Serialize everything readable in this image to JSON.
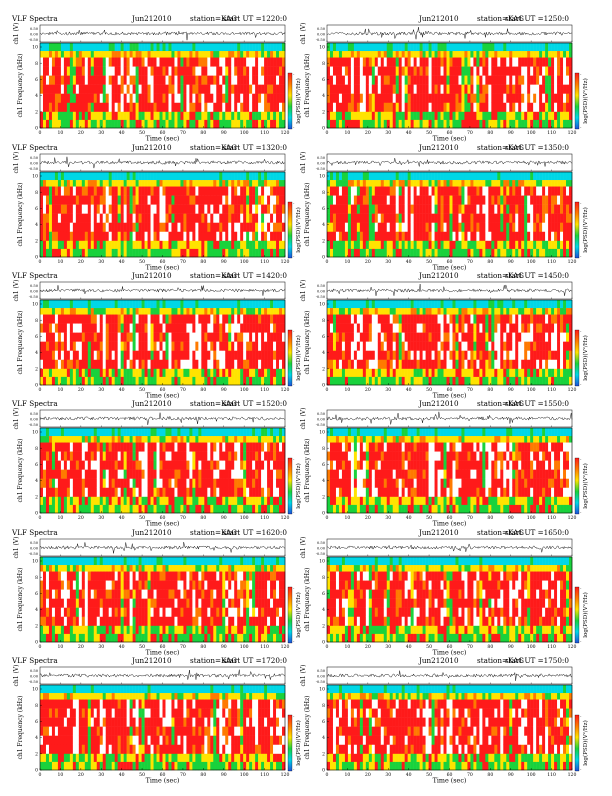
{
  "figure": {
    "panel_title_prefix": "VLF Spectra",
    "x_label": "Time (sec)",
    "y_label_wave": "ch1 (V)",
    "y_label_spec": "ch1 Frequency (kHz)",
    "colorbar_label": "log(PSD)(V²/Hz)",
    "wave_ticks": [
      "0.50",
      "0.00",
      "-0.50"
    ],
    "freq_ticks": [
      "10",
      "8",
      "6",
      "4",
      "2",
      "0"
    ],
    "time_ticks": [
      "0",
      "10",
      "20",
      "30",
      "40",
      "50",
      "60",
      "70",
      "80",
      "90",
      "100",
      "110",
      "120"
    ],
    "colorbar_ticks": [
      "-",
      "-"
    ],
    "colors": {
      "low": "#1f4fd8",
      "cyan": "#00d7e6",
      "green": "#19d23c",
      "yellow": "#ffe300",
      "orange": "#ff7a00",
      "red": "#ff1a1a",
      "white_gap": "#ffffff"
    }
  },
  "chart_data": [
    {
      "type": "heatmap",
      "date": "Jun212010",
      "station": "station=KAG",
      "start": "start UT =1220:0",
      "title": "VLF Spectra",
      "xlabel": "Time (sec)",
      "ylabel": "Frequency (kHz)",
      "xlim": [
        0,
        120
      ],
      "ylim": [
        0,
        10
      ],
      "zlabel": "log(PSD)(V²/Hz)"
    },
    {
      "type": "heatmap",
      "date": "Jun212010",
      "station": "station=KAG",
      "start": "start UT =1250:0",
      "title": "",
      "xlabel": "Time (sec)",
      "ylabel": "Frequency (kHz)",
      "xlim": [
        0,
        120
      ],
      "ylim": [
        0,
        10
      ],
      "zlabel": "log(PSD)(V²/Hz)"
    },
    {
      "type": "heatmap",
      "date": "Jun212010",
      "station": "station=KAG",
      "start": "start UT =1320:0",
      "title": "VLF Spectra",
      "xlabel": "Time (sec)",
      "ylabel": "Frequency (kHz)",
      "xlim": [
        0,
        120
      ],
      "ylim": [
        0,
        10
      ],
      "zlabel": "log(PSD)(V²/Hz)"
    },
    {
      "type": "heatmap",
      "date": "Jun212010",
      "station": "station=KAG",
      "start": "start UT =1350:0",
      "title": "",
      "xlabel": "Time (sec)",
      "ylabel": "Frequency (kHz)",
      "xlim": [
        0,
        120
      ],
      "ylim": [
        0,
        10
      ],
      "zlabel": "log(PSD)(V²/Hz)"
    },
    {
      "type": "heatmap",
      "date": "Jun212010",
      "station": "station=KAG",
      "start": "start UT =1420:0",
      "title": "VLF Spectra",
      "xlabel": "Time (sec)",
      "ylabel": "Frequency (kHz)",
      "xlim": [
        0,
        120
      ],
      "ylim": [
        0,
        10
      ],
      "zlabel": "log(PSD)(V²/Hz)"
    },
    {
      "type": "heatmap",
      "date": "Jun212010",
      "station": "station=KAG",
      "start": "start UT =1450:0",
      "title": "",
      "xlabel": "Time (sec)",
      "ylabel": "Frequency (kHz)",
      "xlim": [
        0,
        120
      ],
      "ylim": [
        0,
        10
      ],
      "zlabel": "log(PSD)(V²/Hz)"
    },
    {
      "type": "heatmap",
      "date": "Jun212010",
      "station": "station=KAG",
      "start": "start UT =1520:0",
      "title": "VLF Spectra",
      "xlabel": "Time (sec)",
      "ylabel": "Frequency (kHz)",
      "xlim": [
        0,
        120
      ],
      "ylim": [
        0,
        10
      ],
      "zlabel": "log(PSD)(V²/Hz)"
    },
    {
      "type": "heatmap",
      "date": "Jun212010",
      "station": "station=KAG",
      "start": "start UT =1550:0",
      "title": "",
      "xlabel": "Time (sec)",
      "ylabel": "Frequency (kHz)",
      "xlim": [
        0,
        120
      ],
      "ylim": [
        0,
        10
      ],
      "zlabel": "log(PSD)(V²/Hz)"
    },
    {
      "type": "heatmap",
      "date": "Jun212010",
      "station": "station=KAG",
      "start": "start UT =1620:0",
      "title": "VLF Spectra",
      "xlabel": "Time (sec)",
      "ylabel": "Frequency (kHz)",
      "xlim": [
        0,
        120
      ],
      "ylim": [
        0,
        10
      ],
      "zlabel": "log(PSD)(V²/Hz)"
    },
    {
      "type": "heatmap",
      "date": "Jun212010",
      "station": "station=KAG",
      "start": "start UT =1650:0",
      "title": "",
      "xlabel": "Time (sec)",
      "ylabel": "Frequency (kHz)",
      "xlim": [
        0,
        120
      ],
      "ylim": [
        0,
        10
      ],
      "zlabel": "log(PSD)(V²/Hz)"
    },
    {
      "type": "heatmap",
      "date": "Jun212010",
      "station": "station=KAG",
      "start": "start UT =1720:0",
      "title": "VLF Spectra",
      "xlabel": "Time (sec)",
      "ylabel": "Frequency (kHz)",
      "xlim": [
        0,
        120
      ],
      "ylim": [
        0,
        10
      ],
      "zlabel": "log(PSD)(V²/Hz)"
    },
    {
      "type": "heatmap",
      "date": "Jun212010",
      "station": "station=KAG",
      "start": "start UT =1750:0",
      "title": "",
      "xlabel": "Time (sec)",
      "ylabel": "Frequency (kHz)",
      "xlim": [
        0,
        120
      ],
      "ylim": [
        0,
        10
      ],
      "zlabel": "log(PSD)(V²/Hz)"
    }
  ]
}
